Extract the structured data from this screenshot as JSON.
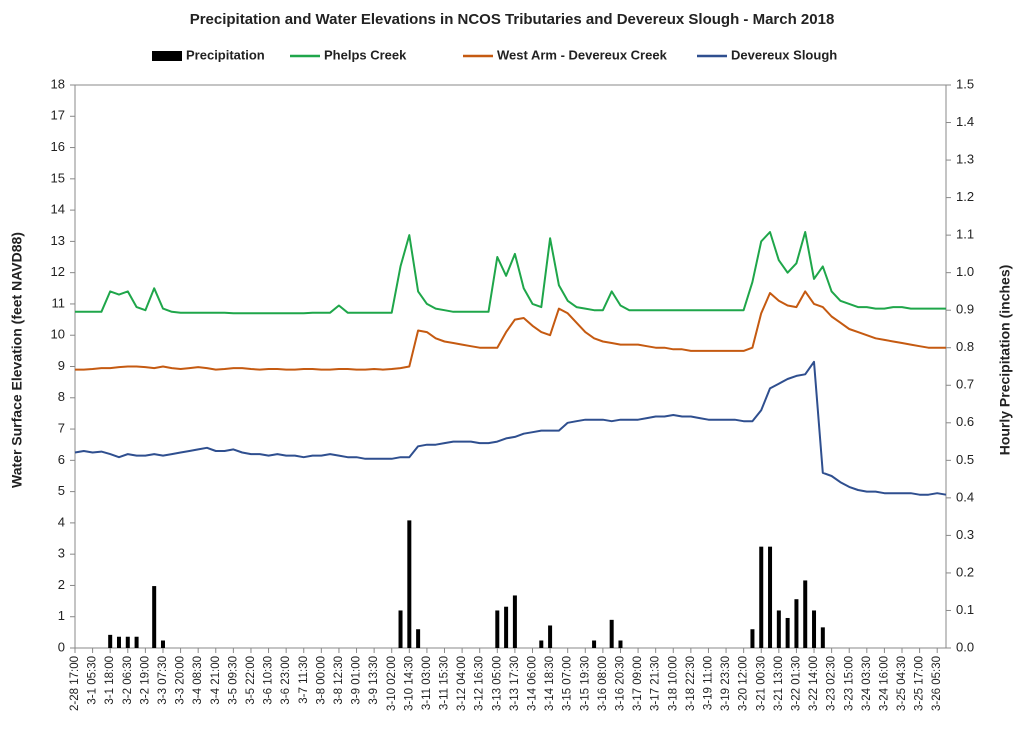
{
  "chart_data": {
    "type": "line",
    "title": "Precipitation and Water Elevations in NCOS Tributaries and Devereux Slough - March 2018",
    "y_label": "Water Surface Elevation (feet NAVD88)",
    "y2_label": "Hourly Precipitation (inches)",
    "categories": [
      "2-28 17:00",
      null,
      "3-1 05:30",
      null,
      "3-1 18:00",
      null,
      "3-2 06:30",
      null,
      "3-2 19:00",
      null,
      "3-3 07:30",
      null,
      "3-3 20:00",
      null,
      "3-4 08:30",
      null,
      "3-4 21:00",
      null,
      "3-5 09:30",
      null,
      "3-5 22:00",
      null,
      "3-6 10:30",
      null,
      "3-6 23:00",
      null,
      "3-7 11:30",
      null,
      "3-8 00:00",
      null,
      "3-8 12:30",
      null,
      "3-9 01:00",
      null,
      "3-9 13:30",
      null,
      "3-10 02:00",
      null,
      "3-10 14:30",
      null,
      "3-11 03:00",
      null,
      "3-11 15:30",
      null,
      "3-12 04:00",
      null,
      "3-12 16:30",
      null,
      "3-13 05:00",
      null,
      "3-13 17:30",
      null,
      "3-14 06:00",
      null,
      "3-14 18:30",
      null,
      "3-15 07:00",
      null,
      "3-15 19:30",
      null,
      "3-16 08:00",
      null,
      "3-16 20:30",
      null,
      "3-17 09:00",
      null,
      "3-17 21:30",
      null,
      "3-18 10:00",
      null,
      "3-18 22:30",
      null,
      "3-19 11:00",
      null,
      "3-19 23:30",
      null,
      "3-20 12:00",
      null,
      "3-21 00:30",
      null,
      "3-21 13:00",
      null,
      "3-22 01:30",
      null,
      "3-22 14:00",
      null,
      "3-23 02:30",
      null,
      "3-23 15:00",
      null,
      "3-24 03:30",
      null,
      "3-24 16:00",
      null,
      "3-25 04:30",
      null,
      "3-25 17:00",
      null,
      "3-26 05:30",
      null
    ],
    "series": [
      {
        "name": "Precipitation",
        "type": "bar",
        "axis": "y2",
        "color": "#000000",
        "values": [
          0,
          0,
          0,
          0,
          0.035,
          0.03,
          0.03,
          0.03,
          0,
          0.165,
          0.02,
          0,
          0,
          0,
          0,
          0,
          0,
          0,
          0,
          0,
          0,
          0,
          0,
          0,
          0,
          0,
          0,
          0,
          0,
          0,
          0,
          0,
          0,
          0,
          0,
          0,
          0,
          0.1,
          0.34,
          0.05,
          0,
          0,
          0,
          0,
          0,
          0,
          0,
          0,
          0.1,
          0.11,
          0.14,
          0,
          0,
          0.02,
          0.06,
          0,
          0,
          0,
          0,
          0.02,
          0,
          0.075,
          0.02,
          0,
          0,
          0,
          0,
          0,
          0,
          0,
          0,
          0,
          0,
          0,
          0,
          0,
          0,
          0.05,
          0.27,
          0.27,
          0.1,
          0.08,
          0.13,
          0.18,
          0.1,
          0.055,
          0,
          0,
          0,
          0,
          0,
          0,
          0,
          0,
          0,
          0,
          0,
          0,
          0,
          0
        ]
      },
      {
        "name": "Phelps Creek",
        "type": "line",
        "color": "#1fa64a",
        "values": [
          10.75,
          10.75,
          10.75,
          10.75,
          11.4,
          11.3,
          11.4,
          10.9,
          10.8,
          11.5,
          10.85,
          10.75,
          10.72,
          10.72,
          10.72,
          10.72,
          10.72,
          10.72,
          10.7,
          10.7,
          10.7,
          10.7,
          10.7,
          10.7,
          10.7,
          10.7,
          10.7,
          10.72,
          10.72,
          10.72,
          10.95,
          10.72,
          10.72,
          10.72,
          10.72,
          10.72,
          10.72,
          12.2,
          13.2,
          11.4,
          11.0,
          10.85,
          10.8,
          10.75,
          10.75,
          10.75,
          10.75,
          10.75,
          12.5,
          11.9,
          12.6,
          11.5,
          11.0,
          10.9,
          13.1,
          11.6,
          11.1,
          10.9,
          10.85,
          10.8,
          10.8,
          11.4,
          10.95,
          10.8,
          10.8,
          10.8,
          10.8,
          10.8,
          10.8,
          10.8,
          10.8,
          10.8,
          10.8,
          10.8,
          10.8,
          10.8,
          10.8,
          11.7,
          13.0,
          13.3,
          12.4,
          12.0,
          12.3,
          13.3,
          11.8,
          12.2,
          11.4,
          11.1,
          11.0,
          10.9,
          10.9,
          10.85,
          10.85,
          10.9,
          10.9,
          10.85,
          10.85,
          10.85,
          10.85,
          10.85
        ]
      },
      {
        "name": "West Arm - Devereux Creek",
        "type": "line",
        "color": "#c55a11",
        "values": [
          8.9,
          8.9,
          8.92,
          8.95,
          8.95,
          8.98,
          9.0,
          9.0,
          8.98,
          8.95,
          9.0,
          8.95,
          8.92,
          8.95,
          8.98,
          8.95,
          8.9,
          8.92,
          8.95,
          8.95,
          8.92,
          8.9,
          8.92,
          8.92,
          8.9,
          8.9,
          8.92,
          8.92,
          8.9,
          8.9,
          8.92,
          8.92,
          8.9,
          8.9,
          8.92,
          8.9,
          8.92,
          8.95,
          9.0,
          10.15,
          10.1,
          9.9,
          9.8,
          9.75,
          9.7,
          9.65,
          9.6,
          9.6,
          9.6,
          10.1,
          10.5,
          10.55,
          10.3,
          10.1,
          10.0,
          10.85,
          10.7,
          10.4,
          10.1,
          9.9,
          9.8,
          9.75,
          9.7,
          9.7,
          9.7,
          9.65,
          9.6,
          9.6,
          9.55,
          9.55,
          9.5,
          9.5,
          9.5,
          9.5,
          9.5,
          9.5,
          9.5,
          9.6,
          10.7,
          11.35,
          11.1,
          10.95,
          10.9,
          11.4,
          11.0,
          10.9,
          10.6,
          10.4,
          10.2,
          10.1,
          10.0,
          9.9,
          9.85,
          9.8,
          9.75,
          9.7,
          9.65,
          9.6,
          9.6,
          9.6
        ]
      },
      {
        "name": "Devereux Slough",
        "type": "line",
        "color": "#2f4f8f",
        "values": [
          6.25,
          6.3,
          6.25,
          6.28,
          6.2,
          6.1,
          6.2,
          6.15,
          6.15,
          6.2,
          6.15,
          6.2,
          6.25,
          6.3,
          6.35,
          6.4,
          6.3,
          6.3,
          6.35,
          6.25,
          6.2,
          6.2,
          6.15,
          6.2,
          6.15,
          6.15,
          6.1,
          6.15,
          6.15,
          6.2,
          6.15,
          6.1,
          6.1,
          6.05,
          6.05,
          6.05,
          6.05,
          6.1,
          6.1,
          6.45,
          6.5,
          6.5,
          6.55,
          6.6,
          6.6,
          6.6,
          6.55,
          6.55,
          6.6,
          6.7,
          6.75,
          6.85,
          6.9,
          6.95,
          6.95,
          6.95,
          7.2,
          7.25,
          7.3,
          7.3,
          7.3,
          7.25,
          7.3,
          7.3,
          7.3,
          7.35,
          7.4,
          7.4,
          7.45,
          7.4,
          7.4,
          7.35,
          7.3,
          7.3,
          7.3,
          7.3,
          7.25,
          7.25,
          7.6,
          8.3,
          8.45,
          8.6,
          8.7,
          8.75,
          9.15,
          5.6,
          5.5,
          5.3,
          5.15,
          5.05,
          5.0,
          5.0,
          4.95,
          4.95,
          4.95,
          4.95,
          4.9,
          4.9,
          4.95,
          4.9
        ]
      }
    ],
    "ylim": [
      0,
      18
    ],
    "yticks": [
      0,
      1,
      2,
      3,
      4,
      5,
      6,
      7,
      8,
      9,
      10,
      11,
      12,
      13,
      14,
      15,
      16,
      17,
      18
    ],
    "y2lim": [
      0,
      1.5
    ],
    "y2ticks": [
      {
        "value": 0,
        "label": "0.0"
      },
      0.1,
      0.2,
      0.3,
      0.4,
      0.5,
      0.6,
      0.7,
      0.8,
      0.9,
      {
        "value": 1,
        "label": "1.0"
      },
      1.1,
      1.2,
      1.3,
      1.4,
      1.5
    ],
    "grid": false,
    "legend": "top"
  }
}
